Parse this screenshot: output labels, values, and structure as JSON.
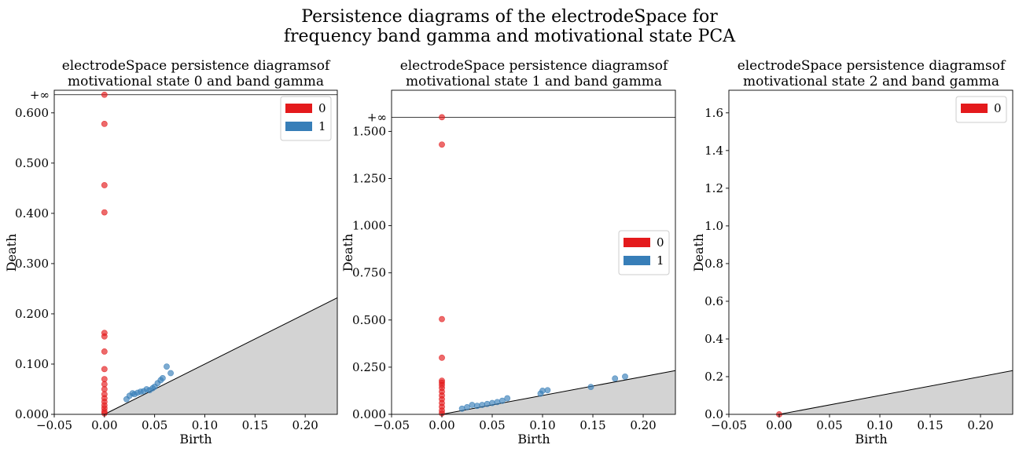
{
  "figure": {
    "title_line1": "Persistence diagrams of the electrodeSpace for",
    "title_line2": "frequency band gamma and motivational state PCA"
  },
  "colors": {
    "h0": "#e41a1c",
    "h1": "#377eb8",
    "diagonal_fill": "#d3d3d3",
    "infinity_line": "#000000"
  },
  "chart_data": [
    {
      "type": "scatter",
      "title_line1": "electrodeSpace persistence diagramsof",
      "title_line2": "motivational state 0 and band gamma",
      "xlabel": "Birth",
      "ylabel": "Death",
      "xlim": [
        -0.05,
        0.232
      ],
      "ylim": [
        0,
        0.645
      ],
      "infinity_level": 0.636,
      "infinity_label": "+∞",
      "x_ticks": [
        -0.05,
        0.0,
        0.05,
        0.1,
        0.15,
        0.2
      ],
      "x_tick_labels": [
        "−0.05",
        "0.00",
        "0.05",
        "0.10",
        "0.15",
        "0.20"
      ],
      "y_ticks": [
        0.0,
        0.1,
        0.2,
        0.3,
        0.4,
        0.5,
        0.6
      ],
      "y_tick_labels": [
        "0.000",
        "0.100",
        "0.200",
        "0.300",
        "0.400",
        "0.500",
        "0.600"
      ],
      "grid": false,
      "legend_position": "top-right",
      "legend": [
        "0",
        "1"
      ],
      "series": [
        {
          "name": "0",
          "color_key": "h0",
          "points": [
            [
              0,
              0.636
            ],
            [
              0,
              0.578
            ],
            [
              0,
              0.456
            ],
            [
              0,
              0.402
            ],
            [
              0,
              0.162
            ],
            [
              0,
              0.155
            ],
            [
              0,
              0.125
            ],
            [
              0,
              0.09
            ],
            [
              0,
              0.07
            ],
            [
              0,
              0.06
            ],
            [
              0,
              0.05
            ],
            [
              0,
              0.04
            ],
            [
              0,
              0.032
            ],
            [
              0,
              0.025
            ],
            [
              0,
              0.018
            ],
            [
              0,
              0.012
            ],
            [
              0,
              0.006
            ],
            [
              0,
              0.002
            ]
          ]
        },
        {
          "name": "1",
          "color_key": "h1",
          "points": [
            [
              0.022,
              0.03
            ],
            [
              0.025,
              0.037
            ],
            [
              0.028,
              0.042
            ],
            [
              0.03,
              0.04
            ],
            [
              0.033,
              0.043
            ],
            [
              0.036,
              0.045
            ],
            [
              0.039,
              0.046
            ],
            [
              0.042,
              0.05
            ],
            [
              0.045,
              0.048
            ],
            [
              0.048,
              0.052
            ],
            [
              0.05,
              0.055
            ],
            [
              0.053,
              0.062
            ],
            [
              0.056,
              0.068
            ],
            [
              0.058,
              0.072
            ],
            [
              0.062,
              0.095
            ],
            [
              0.066,
              0.082
            ]
          ]
        }
      ]
    },
    {
      "type": "scatter",
      "title_line1": "electrodeSpace persistence diagramsof",
      "title_line2": "motivational state 1 and band gamma",
      "xlabel": "Birth",
      "ylabel": "Death",
      "xlim": [
        -0.05,
        0.232
      ],
      "ylim": [
        0,
        1.718
      ],
      "infinity_level": 1.575,
      "infinity_label": "+∞",
      "x_ticks": [
        -0.05,
        0.0,
        0.05,
        0.1,
        0.15,
        0.2
      ],
      "x_tick_labels": [
        "−0.05",
        "0.00",
        "0.05",
        "0.10",
        "0.15",
        "0.20"
      ],
      "y_ticks": [
        0.0,
        0.25,
        0.5,
        0.75,
        1.0,
        1.25,
        1.5
      ],
      "y_tick_labels": [
        "0.000",
        "0.250",
        "0.500",
        "0.750",
        "1.000",
        "1.250",
        "1.500"
      ],
      "grid": false,
      "legend_position": "center-right",
      "legend": [
        "0",
        "1"
      ],
      "series": [
        {
          "name": "0",
          "color_key": "h0",
          "points": [
            [
              0,
              1.575
            ],
            [
              0,
              1.43
            ],
            [
              0,
              0.505
            ],
            [
              0,
              0.3
            ],
            [
              0,
              0.178
            ],
            [
              0,
              0.168
            ],
            [
              0,
              0.155
            ],
            [
              0,
              0.14
            ],
            [
              0,
              0.12
            ],
            [
              0,
              0.1
            ],
            [
              0,
              0.08
            ],
            [
              0,
              0.06
            ],
            [
              0,
              0.04
            ],
            [
              0,
              0.02
            ],
            [
              0,
              0.005
            ]
          ]
        },
        {
          "name": "1",
          "color_key": "h1",
          "points": [
            [
              0.02,
              0.03
            ],
            [
              0.025,
              0.038
            ],
            [
              0.03,
              0.05
            ],
            [
              0.035,
              0.045
            ],
            [
              0.04,
              0.05
            ],
            [
              0.045,
              0.055
            ],
            [
              0.05,
              0.06
            ],
            [
              0.055,
              0.065
            ],
            [
              0.06,
              0.072
            ],
            [
              0.065,
              0.085
            ],
            [
              0.098,
              0.11
            ],
            [
              0.1,
              0.125
            ],
            [
              0.105,
              0.128
            ],
            [
              0.148,
              0.145
            ],
            [
              0.172,
              0.19
            ],
            [
              0.182,
              0.2
            ]
          ]
        }
      ]
    },
    {
      "type": "scatter",
      "title_line1": "electrodeSpace persistence diagramsof",
      "title_line2": "motivational state 2 and band gamma",
      "xlabel": "Birth",
      "ylabel": "Death",
      "xlim": [
        -0.05,
        0.232
      ],
      "ylim": [
        0,
        1.72
      ],
      "infinity_level": null,
      "infinity_label": "",
      "x_ticks": [
        -0.05,
        0.0,
        0.05,
        0.1,
        0.15,
        0.2
      ],
      "x_tick_labels": [
        "−0.05",
        "0.00",
        "0.05",
        "0.10",
        "0.15",
        "0.20"
      ],
      "y_ticks": [
        0.0,
        0.2,
        0.4,
        0.6,
        0.8,
        1.0,
        1.2,
        1.4,
        1.6
      ],
      "y_tick_labels": [
        "0.0",
        "0.2",
        "0.4",
        "0.6",
        "0.8",
        "1.0",
        "1.2",
        "1.4",
        "1.6"
      ],
      "grid": false,
      "legend_position": "top-right",
      "legend": [
        "0"
      ],
      "series": [
        {
          "name": "0",
          "color_key": "h0",
          "points": [
            [
              0,
              0
            ]
          ]
        }
      ]
    }
  ]
}
